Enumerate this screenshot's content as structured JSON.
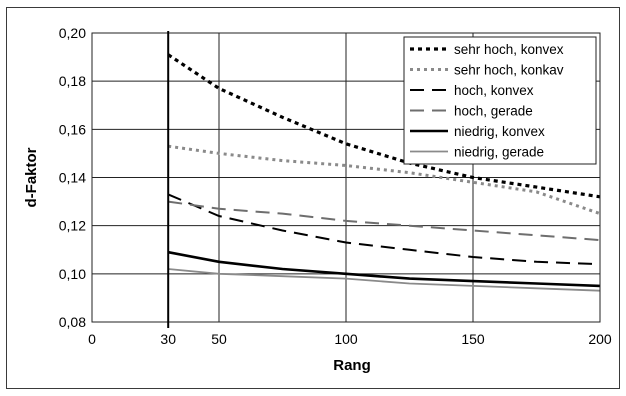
{
  "chart_data": {
    "type": "line",
    "xlabel": "Rang",
    "ylabel": "d-Faktor",
    "xlim": [
      0,
      200
    ],
    "ylim": [
      0.08,
      0.2
    ],
    "xticks": [
      0,
      30,
      50,
      100,
      150,
      200
    ],
    "xtick_labels": [
      "0",
      "30",
      "50",
      "100",
      "150",
      "200"
    ],
    "yticks": [
      0.08,
      0.1,
      0.12,
      0.14,
      0.16,
      0.18,
      0.2
    ],
    "ytick_labels": [
      "0,08",
      "0,10",
      "0,12",
      "0,14",
      "0,16",
      "0,18",
      "0,20"
    ],
    "grid": true,
    "legend_position": "top-right",
    "series": [
      {
        "name": "sehr hoch, konvex",
        "color": "#000000",
        "dash": "dotted-bold",
        "x": [
          30,
          50,
          75,
          100,
          125,
          150,
          175,
          200
        ],
        "y": [
          0.191,
          0.177,
          0.165,
          0.154,
          0.146,
          0.14,
          0.136,
          0.132
        ]
      },
      {
        "name": "sehr hoch, konkav",
        "color": "#8a8a8a",
        "dash": "dotted",
        "x": [
          30,
          50,
          75,
          100,
          125,
          150,
          175,
          200
        ],
        "y": [
          0.153,
          0.15,
          0.147,
          0.145,
          0.142,
          0.138,
          0.134,
          0.125
        ]
      },
      {
        "name": "hoch, konvex",
        "color": "#000000",
        "dash": "long-dash",
        "x": [
          30,
          50,
          75,
          100,
          125,
          150,
          175,
          200
        ],
        "y": [
          0.133,
          0.124,
          0.118,
          0.113,
          0.11,
          0.107,
          0.105,
          0.104
        ]
      },
      {
        "name": "hoch, gerade",
        "color": "#6e6e6e",
        "dash": "long-dash",
        "x": [
          30,
          50,
          75,
          100,
          125,
          150,
          175,
          200
        ],
        "y": [
          0.13,
          0.127,
          0.125,
          0.122,
          0.12,
          0.118,
          0.116,
          0.114
        ]
      },
      {
        "name": "niedrig, konvex",
        "color": "#000000",
        "dash": "solid-bold",
        "x": [
          30,
          50,
          75,
          100,
          125,
          150,
          175,
          200
        ],
        "y": [
          0.109,
          0.105,
          0.102,
          0.1,
          0.098,
          0.097,
          0.096,
          0.095
        ]
      },
      {
        "name": "niedrig, gerade",
        "color": "#8a8a8a",
        "dash": "solid",
        "x": [
          30,
          50,
          75,
          100,
          125,
          150,
          175,
          200
        ],
        "y": [
          0.102,
          0.1,
          0.099,
          0.098,
          0.096,
          0.095,
          0.094,
          0.093
        ]
      }
    ]
  }
}
